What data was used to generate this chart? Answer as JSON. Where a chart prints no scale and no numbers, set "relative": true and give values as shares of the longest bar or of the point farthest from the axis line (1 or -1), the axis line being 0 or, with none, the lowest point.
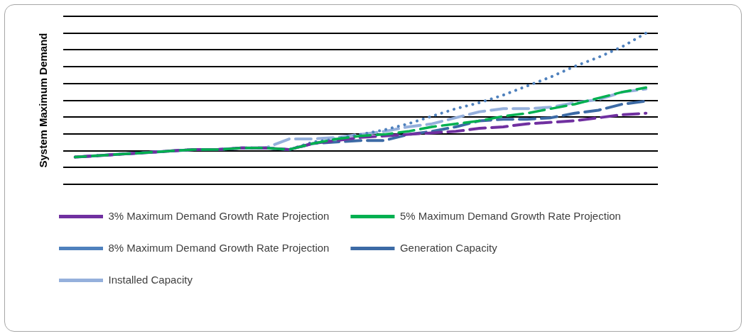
{
  "chart_data": {
    "type": "line",
    "ylabel": "System Maximum Demand",
    "relative": true,
    "grid": "y",
    "legend": "bottom",
    "marker": "none",
    "categories": [
      null,
      null,
      null,
      null,
      null,
      null,
      null,
      null,
      null,
      null,
      null,
      null,
      null,
      null,
      null,
      null,
      null,
      null,
      null,
      null,
      null,
      null,
      null,
      null,
      null
    ],
    "series": [
      {
        "name": "3% Maximum Demand Growth Rate Projection",
        "color": "#7030a0",
        "line_style": "dashed",
        "values": [
          0.18,
          0.19,
          0.2,
          0.21,
          0.22,
          0.23,
          0.23,
          0.24,
          0.24,
          0.23,
          0.27,
          0.29,
          0.31,
          0.32,
          0.33,
          0.34,
          0.35,
          0.37,
          0.38,
          0.4,
          0.41,
          0.42,
          0.44,
          0.46,
          0.47
        ]
      },
      {
        "name": "5% Maximum Demand Growth Rate Projection",
        "color": "#00b050",
        "line_style": "dashed",
        "values": [
          0.18,
          0.19,
          0.2,
          0.21,
          0.22,
          0.23,
          0.23,
          0.24,
          0.24,
          0.23,
          0.27,
          0.3,
          0.32,
          0.33,
          0.35,
          0.38,
          0.4,
          0.42,
          0.45,
          0.47,
          0.5,
          0.53,
          0.57,
          0.61,
          0.64
        ]
      },
      {
        "name": "8% Maximum Demand Growth Rate Projection",
        "color": "#4f81bd",
        "line_style": "dotted",
        "values": [
          0.18,
          0.19,
          0.2,
          0.21,
          0.22,
          0.23,
          0.23,
          0.24,
          0.24,
          0.23,
          0.28,
          0.3,
          0.33,
          0.36,
          0.4,
          0.45,
          0.5,
          0.54,
          0.59,
          0.65,
          0.71,
          0.78,
          0.84,
          0.91,
          1.0
        ]
      },
      {
        "name": "Generation Capacity",
        "color": "#3c6aa5",
        "line_style": "dashed",
        "values": [
          0.18,
          0.19,
          0.2,
          0.21,
          0.22,
          0.23,
          0.23,
          0.24,
          0.24,
          0.23,
          0.27,
          0.28,
          0.29,
          0.29,
          0.33,
          0.35,
          0.38,
          0.42,
          0.43,
          0.43,
          0.44,
          0.47,
          0.49,
          0.53,
          0.55
        ]
      },
      {
        "name": "Installed Capacity",
        "color": "#95b0dc",
        "line_style": "dashed",
        "values": [
          0.18,
          0.19,
          0.2,
          0.21,
          0.22,
          0.23,
          0.23,
          0.24,
          0.24,
          0.3,
          0.3,
          0.31,
          0.33,
          0.35,
          0.38,
          0.4,
          0.44,
          0.48,
          0.5,
          0.5,
          0.51,
          0.54,
          0.56,
          0.61,
          0.63
        ]
      }
    ]
  }
}
